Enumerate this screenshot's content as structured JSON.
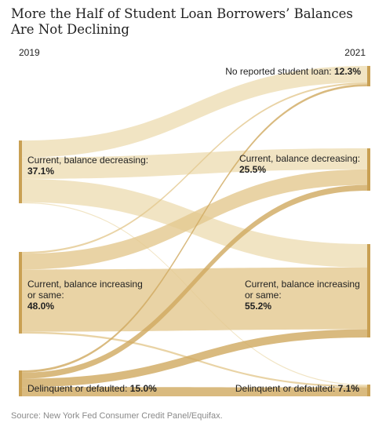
{
  "title": "More the Half of Student Loan Borrowers’ Balances Are Not Declining",
  "source": "Source: New York Fed Consumer Credit Panel/Equifax.",
  "colors": {
    "node": "#c9a053",
    "flow_light": "#efdfb8",
    "flow_mid": "#e3c88e",
    "flow_dark": "#cfa95f",
    "text": "#222222"
  },
  "chart_data": {
    "type": "sankey",
    "left_label": "2019",
    "right_label": "2021",
    "left_nodes": [
      {
        "id": "cur_dec_2019",
        "label": "Current, balance decreasing:",
        "value_text": "37.1%",
        "value": 37.1
      },
      {
        "id": "cur_inc_2019",
        "label": "Current, balance increasing or same:",
        "value_text": "48.0%",
        "value": 48.0
      },
      {
        "id": "delinq_2019",
        "label": "Delinquent or defaulted:",
        "value_text": "15.0%",
        "value": 15.0
      }
    ],
    "right_nodes": [
      {
        "id": "noloan_2021",
        "label": "No reported student loan:",
        "value_text": "12.3%",
        "value": 12.3
      },
      {
        "id": "cur_dec_2021",
        "label": "Current, balance decreasing:",
        "value_text": "25.5%",
        "value": 25.5
      },
      {
        "id": "cur_inc_2021",
        "label": "Current, balance increasing or same:",
        "value_text": "55.2%",
        "value": 55.2
      },
      {
        "id": "delinq_2021",
        "label": "Delinquent or defaulted:",
        "value_text": "7.1%",
        "value": 7.1
      }
    ],
    "flows": [
      {
        "from": "cur_dec_2019",
        "to": "noloan_2021",
        "value": 10.0,
        "tone": "light"
      },
      {
        "from": "cur_dec_2019",
        "to": "cur_dec_2021",
        "value": 12.7,
        "tone": "light"
      },
      {
        "from": "cur_dec_2019",
        "to": "cur_inc_2021",
        "value": 13.8,
        "tone": "light"
      },
      {
        "from": "cur_dec_2019",
        "to": "delinq_2021",
        "value": 0.6,
        "tone": "light"
      },
      {
        "from": "cur_inc_2019",
        "to": "noloan_2021",
        "value": 1.0,
        "tone": "mid"
      },
      {
        "from": "cur_inc_2019",
        "to": "cur_dec_2021",
        "value": 9.3,
        "tone": "mid"
      },
      {
        "from": "cur_inc_2019",
        "to": "cur_inc_2021",
        "value": 36.6,
        "tone": "mid"
      },
      {
        "from": "cur_inc_2019",
        "to": "delinq_2021",
        "value": 1.1,
        "tone": "mid"
      },
      {
        "from": "delinq_2019",
        "to": "noloan_2021",
        "value": 1.3,
        "tone": "dark"
      },
      {
        "from": "delinq_2019",
        "to": "cur_dec_2021",
        "value": 3.5,
        "tone": "dark"
      },
      {
        "from": "delinq_2019",
        "to": "cur_inc_2021",
        "value": 4.8,
        "tone": "dark"
      },
      {
        "from": "delinq_2019",
        "to": "delinq_2021",
        "value": 5.4,
        "tone": "dark"
      }
    ]
  }
}
